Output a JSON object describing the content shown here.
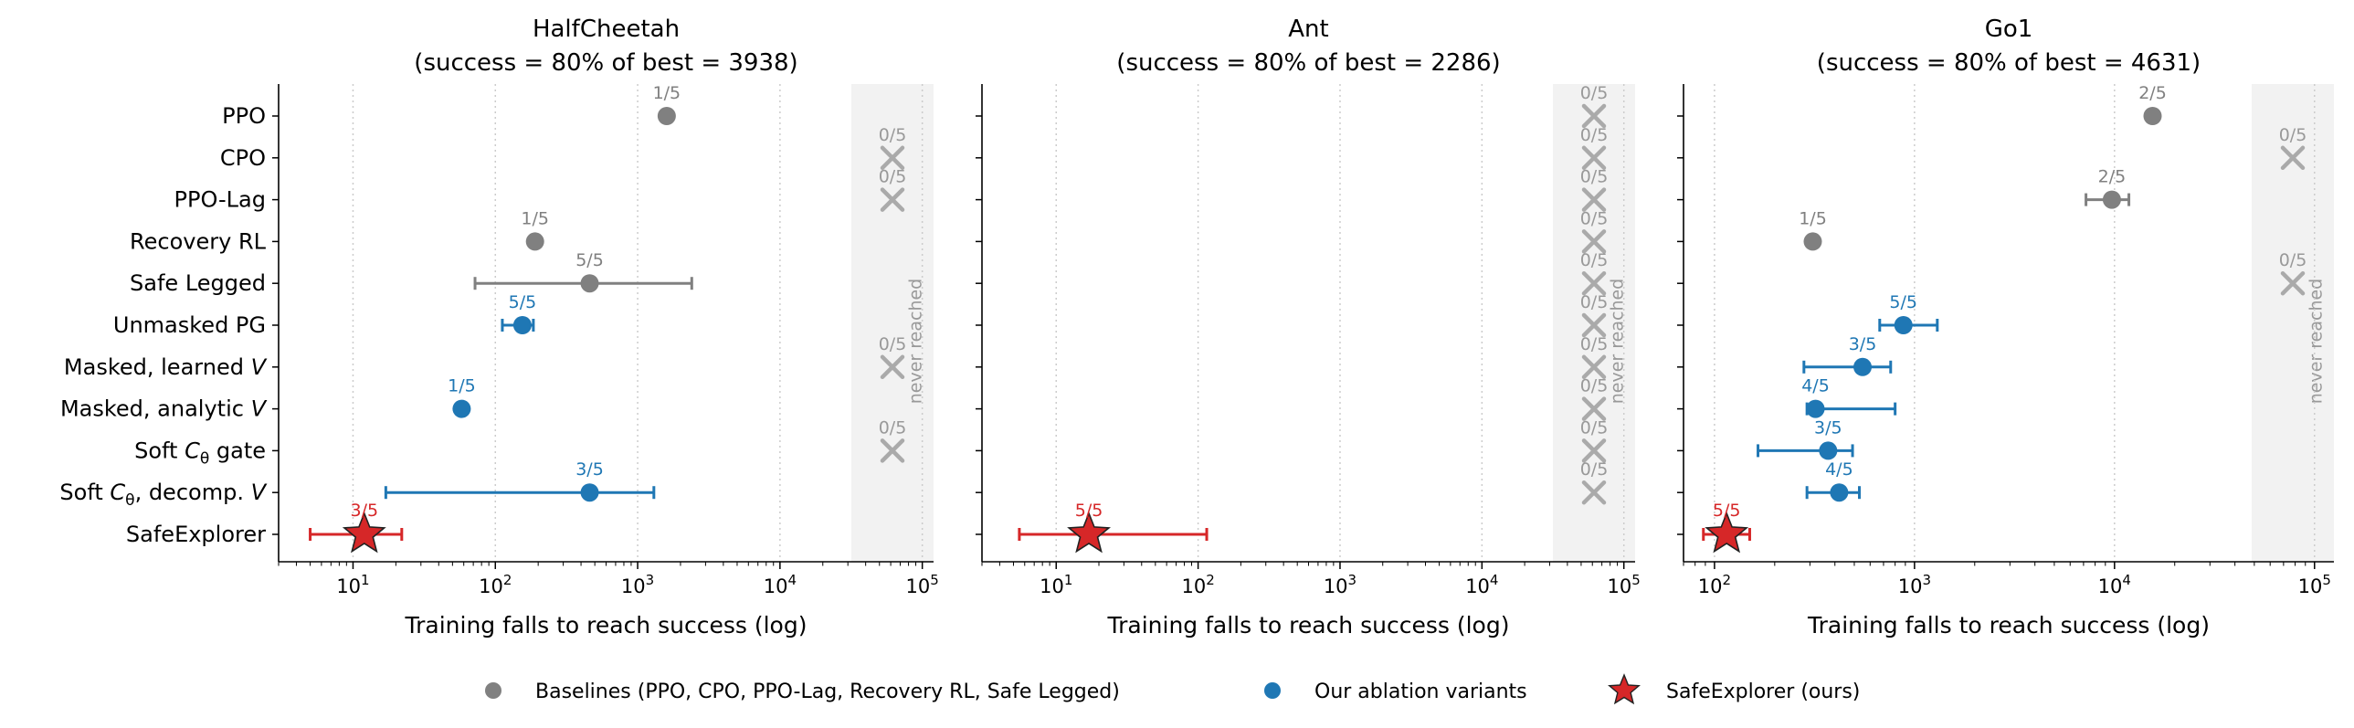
{
  "categories": [
    "PPO",
    "CPO",
    "PPO-Lag",
    "Recovery RL",
    "Safe Legged",
    "Unmasked PG",
    "Masked, learned V",
    "Masked, analytic V",
    "Soft Cθ gate",
    "Soft Cθ, decomp. V",
    "SafeExplorer"
  ],
  "category_labels": [
    {
      "main": "PPO",
      "sub": "",
      "tail": ""
    },
    {
      "main": "CPO",
      "sub": "",
      "tail": ""
    },
    {
      "main": "PPO-Lag",
      "sub": "",
      "tail": ""
    },
    {
      "main": "Recovery RL",
      "sub": "",
      "tail": ""
    },
    {
      "main": "Safe Legged",
      "sub": "",
      "tail": ""
    },
    {
      "main": "Unmasked PG",
      "sub": "",
      "tail": ""
    },
    {
      "main": "Masked, learned ",
      "sub": "",
      "tail": "V",
      "tail_italic": true
    },
    {
      "main": "Masked, analytic ",
      "sub": "",
      "tail": "V",
      "tail_italic": true
    },
    {
      "main": "Soft ",
      "italic_char": "C",
      "sub": "θ",
      "tail": " gate"
    },
    {
      "main": "Soft ",
      "italic_char": "C",
      "sub": "θ",
      "tail": ", decomp. ",
      "tail2_italic": "V"
    },
    {
      "main": "SafeExplorer",
      "sub": "",
      "tail": ""
    }
  ],
  "colors": {
    "baseline": "#808080",
    "ablation": "#1f77b4",
    "ours": "#d62728",
    "never": "#aaaaaa",
    "never_band": "#f2f2f2"
  },
  "never_reached_label": "never reached",
  "xlabel": "Training falls to reach success (log)",
  "x_scale": "log",
  "grid": "x-dotted",
  "legend": {
    "placement": "bottom-center",
    "entries": [
      {
        "label": "Baselines (PPO, CPO, PPO-Lag, Recovery RL, Safe Legged)",
        "marker": "circle",
        "color": "#808080"
      },
      {
        "label": "Our ablation variants",
        "marker": "circle",
        "color": "#1f77b4"
      },
      {
        "label": "SafeExplorer (ours)",
        "marker": "star",
        "color": "#d62728"
      }
    ]
  },
  "chart_data": [
    {
      "type": "scatter",
      "title_line1": "HalfCheetah",
      "title_line2": "(success  = 80% of best  = 3938)",
      "xlabel": "Training falls to reach success (log)",
      "xlim": [
        3,
        120000
      ],
      "xticks": [
        10,
        100,
        1000,
        10000,
        100000
      ],
      "xtick_labels": [
        "10^1",
        "10^2",
        "10^3",
        "10^4",
        "10^5"
      ],
      "points": [
        {
          "method": "PPO",
          "group": "baseline",
          "reached": true,
          "x": 1600,
          "lo": null,
          "hi": null,
          "label": "1/5"
        },
        {
          "method": "CPO",
          "group": "baseline",
          "reached": false,
          "label": "0/5"
        },
        {
          "method": "PPO-Lag",
          "group": "baseline",
          "reached": false,
          "label": "0/5"
        },
        {
          "method": "Recovery RL",
          "group": "baseline",
          "reached": true,
          "x": 190,
          "lo": null,
          "hi": null,
          "label": "1/5"
        },
        {
          "method": "Safe Legged",
          "group": "baseline",
          "reached": true,
          "x": 460,
          "lo": 72,
          "hi": 2400,
          "label": "5/5"
        },
        {
          "method": "Unmasked PG",
          "group": "ablation",
          "reached": true,
          "x": 155,
          "lo": 112,
          "hi": 185,
          "label": "5/5"
        },
        {
          "method": "Masked, learned V",
          "group": "ablation",
          "reached": false,
          "label": "0/5"
        },
        {
          "method": "Masked, analytic V",
          "group": "ablation",
          "reached": true,
          "x": 58,
          "lo": null,
          "hi": null,
          "label": "1/5"
        },
        {
          "method": "Soft Cθ gate",
          "group": "ablation",
          "reached": false,
          "label": "0/5"
        },
        {
          "method": "Soft Cθ, decomp. V",
          "group": "ablation",
          "reached": true,
          "x": 460,
          "lo": 17,
          "hi": 1300,
          "label": "3/5"
        },
        {
          "method": "SafeExplorer",
          "group": "ours",
          "reached": true,
          "x": 12,
          "lo": 5,
          "hi": 22,
          "label": "3/5"
        }
      ]
    },
    {
      "type": "scatter",
      "title_line1": "Ant",
      "title_line2": "(success  = 80% of best  = 2286)",
      "xlabel": "Training falls to reach success (log)",
      "xlim": [
        3,
        120000
      ],
      "xticks": [
        10,
        100,
        1000,
        10000,
        100000
      ],
      "xtick_labels": [
        "10^1",
        "10^2",
        "10^3",
        "10^4",
        "10^5"
      ],
      "points": [
        {
          "method": "PPO",
          "group": "baseline",
          "reached": false,
          "label": "0/5"
        },
        {
          "method": "CPO",
          "group": "baseline",
          "reached": false,
          "label": "0/5"
        },
        {
          "method": "PPO-Lag",
          "group": "baseline",
          "reached": false,
          "label": "0/5"
        },
        {
          "method": "Recovery RL",
          "group": "baseline",
          "reached": false,
          "label": "0/5"
        },
        {
          "method": "Safe Legged",
          "group": "baseline",
          "reached": false,
          "label": "0/5"
        },
        {
          "method": "Unmasked PG",
          "group": "ablation",
          "reached": false,
          "label": "0/5"
        },
        {
          "method": "Masked, learned V",
          "group": "ablation",
          "reached": false,
          "label": "0/5"
        },
        {
          "method": "Masked, analytic V",
          "group": "ablation",
          "reached": false,
          "label": "0/5"
        },
        {
          "method": "Soft Cθ gate",
          "group": "ablation",
          "reached": false,
          "label": "0/5"
        },
        {
          "method": "Soft Cθ, decomp. V",
          "group": "ablation",
          "reached": false,
          "label": "0/5"
        },
        {
          "method": "SafeExplorer",
          "group": "ours",
          "reached": true,
          "x": 17,
          "lo": 5.5,
          "hi": 115,
          "label": "5/5"
        }
      ]
    },
    {
      "type": "scatter",
      "title_line1": "Go1",
      "title_line2": "(success  = 80% of best  = 4631)",
      "xlabel": "Training falls to reach success (log)",
      "xlim": [
        70,
        125000
      ],
      "xticks": [
        100,
        1000,
        10000,
        100000
      ],
      "xtick_labels": [
        "10^2",
        "10^3",
        "10^4",
        "10^5"
      ],
      "points": [
        {
          "method": "PPO",
          "group": "baseline",
          "reached": true,
          "x": 15500,
          "lo": null,
          "hi": null,
          "label": "2/5"
        },
        {
          "method": "CPO",
          "group": "baseline",
          "reached": false,
          "label": "0/5"
        },
        {
          "method": "PPO-Lag",
          "group": "baseline",
          "reached": true,
          "x": 9700,
          "lo": 7200,
          "hi": 11800,
          "label": "2/5"
        },
        {
          "method": "Recovery RL",
          "group": "baseline",
          "reached": true,
          "x": 310,
          "lo": null,
          "hi": null,
          "label": "1/5"
        },
        {
          "method": "Safe Legged",
          "group": "baseline",
          "reached": false,
          "label": "0/5"
        },
        {
          "method": "Unmasked PG",
          "group": "ablation",
          "reached": true,
          "x": 880,
          "lo": 670,
          "hi": 1300,
          "label": "5/5"
        },
        {
          "method": "Masked, learned V",
          "group": "ablation",
          "reached": true,
          "x": 550,
          "lo": 280,
          "hi": 760,
          "label": "3/5"
        },
        {
          "method": "Masked, analytic V",
          "group": "ablation",
          "reached": true,
          "x": 320,
          "lo": 290,
          "hi": 800,
          "label": "4/5"
        },
        {
          "method": "Soft Cθ gate",
          "group": "ablation",
          "reached": true,
          "x": 370,
          "lo": 165,
          "hi": 490,
          "label": "3/5"
        },
        {
          "method": "Soft Cθ, decomp. V",
          "group": "ablation",
          "reached": true,
          "x": 420,
          "lo": 290,
          "hi": 530,
          "label": "4/5"
        },
        {
          "method": "SafeExplorer",
          "group": "ours",
          "reached": true,
          "x": 115,
          "lo": 88,
          "hi": 150,
          "label": "5/5"
        }
      ]
    }
  ]
}
